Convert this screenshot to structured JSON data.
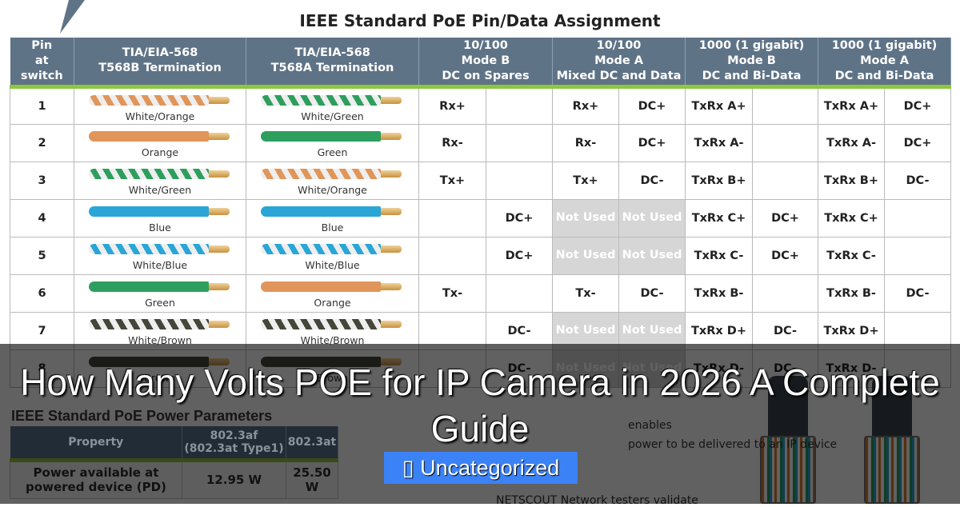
{
  "pin_table": {
    "title": "IEEE Standard PoE Pin/Data Assignment",
    "headers": [
      {
        "label": "Pin at switch",
        "lines": [
          "Pin",
          "at",
          "switch"
        ]
      },
      {
        "lines": [
          "TIA/EIA-568",
          "T568B Termination"
        ]
      },
      {
        "lines": [
          "TIA/EIA-568",
          "T568A Termination"
        ]
      },
      {
        "lines": [
          "10/100",
          "Mode B",
          "DC on Spares"
        ]
      },
      {
        "lines": [
          "10/100",
          "Mode A",
          "Mixed DC and Data"
        ]
      },
      {
        "lines": [
          "1000 (1 gigabit)",
          "Mode B",
          "DC and Bi-Data"
        ]
      },
      {
        "lines": [
          "1000 (1 gigabit)",
          "Mode A",
          "DC and Bi-Data"
        ]
      }
    ],
    "not_used": "Not Used",
    "wire_colors": {
      "orange": "#e0955a",
      "green": "#2e9e5e",
      "blue": "#2aa6d6",
      "brown": "#45463a"
    },
    "rows": [
      {
        "pin": "1",
        "t568b": {
          "label": "White/Orange",
          "color": "orange",
          "striped": true
        },
        "t568a": {
          "label": "White/Green",
          "color": "green",
          "striped": true
        },
        "cells": [
          "Rx+",
          "",
          "Rx+",
          "DC+",
          "TxRx A+",
          "",
          "TxRx A+",
          "DC+"
        ]
      },
      {
        "pin": "2",
        "t568b": {
          "label": "Orange",
          "color": "orange",
          "striped": false
        },
        "t568a": {
          "label": "Green",
          "color": "green",
          "striped": false
        },
        "cells": [
          "Rx-",
          "",
          "Rx-",
          "DC+",
          "TxRx A-",
          "",
          "TxRx A-",
          "DC+"
        ]
      },
      {
        "pin": "3",
        "t568b": {
          "label": "White/Green",
          "color": "green",
          "striped": true
        },
        "t568a": {
          "label": "White/Orange",
          "color": "orange",
          "striped": true
        },
        "cells": [
          "Tx+",
          "",
          "Tx+",
          "DC-",
          "TxRx B+",
          "",
          "TxRx B+",
          "DC-"
        ]
      },
      {
        "pin": "4",
        "t568b": {
          "label": "Blue",
          "color": "blue",
          "striped": false
        },
        "t568a": {
          "label": "Blue",
          "color": "blue",
          "striped": false
        },
        "cells": [
          "",
          "DC+",
          "Not Used",
          "Not Used",
          "TxRx C+",
          "DC+",
          "TxRx C+",
          ""
        ]
      },
      {
        "pin": "5",
        "t568b": {
          "label": "White/Blue",
          "color": "blue",
          "striped": true
        },
        "t568a": {
          "label": "White/Blue",
          "color": "blue",
          "striped": true
        },
        "cells": [
          "",
          "DC+",
          "Not Used",
          "Not Used",
          "TxRx C-",
          "DC+",
          "TxRx C-",
          ""
        ]
      },
      {
        "pin": "6",
        "t568b": {
          "label": "Green",
          "color": "green",
          "striped": false
        },
        "t568a": {
          "label": "Orange",
          "color": "orange",
          "striped": false
        },
        "cells": [
          "Tx-",
          "",
          "Tx-",
          "DC-",
          "TxRx B-",
          "",
          "TxRx B-",
          "DC-"
        ]
      },
      {
        "pin": "7",
        "t568b": {
          "label": "White/Brown",
          "color": "brown",
          "striped": true
        },
        "t568a": {
          "label": "White/Brown",
          "color": "brown",
          "striped": true
        },
        "cells": [
          "",
          "DC-",
          "Not Used",
          "Not Used",
          "TxRx D+",
          "DC-",
          "TxRx D+",
          ""
        ]
      },
      {
        "pin": "8",
        "t568b": {
          "label": "Brown",
          "color": "brown",
          "striped": false
        },
        "t568a": {
          "label": "Brown",
          "color": "brown",
          "striped": false
        },
        "cells": [
          "",
          "DC-",
          "Not Used",
          "Not Used",
          "TxRx D-",
          "DC-",
          "TxRx D-",
          ""
        ]
      }
    ]
  },
  "power_table": {
    "title": "IEEE Standard PoE Power Parameters",
    "headers": [
      "Property",
      "802.3af (802.3at Type1)",
      "802.3at"
    ],
    "rows": [
      [
        "Power available at powered device (PD)",
        "12.95 W",
        "25.50 W"
      ]
    ]
  },
  "side_text": {
    "line1": "enables",
    "line2": "power to be delivered to an IP device",
    "line3": "NETSCOUT Network testers validate"
  },
  "post": {
    "title": "How Many Volts POE for IP Camera in 2026 A Complete Guide",
    "category_icon": "folder-icon",
    "category_glyph": "▯",
    "category": "Uncategorized",
    "category_color": "#3b82f6"
  }
}
